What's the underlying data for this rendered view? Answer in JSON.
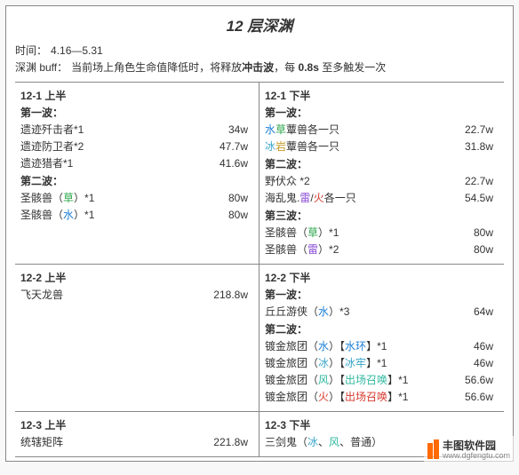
{
  "colors": {
    "text": "#333333",
    "border": "#888888",
    "bg": "#ffffff",
    "hydro": "#1e7fd6",
    "dendro": "#2fa84f",
    "cryo": "#3aa6c9",
    "geo": "#c49a2a",
    "electro": "#8a4fd6",
    "pyro": "#d63a2f",
    "anemo": "#2fb9a0",
    "accent_orange": "#ff6a00"
  },
  "title": "12 层深渊",
  "meta": {
    "time_label": "时间：",
    "time_value": "4.16—5.31",
    "buff_label": "深渊 buff：",
    "buff_pre": "当前场上角色生命值降低时，将释放",
    "buff_key": "冲击波",
    "buff_mid": "，每 ",
    "buff_interval": "0.8s",
    "buff_post": " 至多触发一次"
  },
  "cells": [
    {
      "header": "12-1 上半",
      "waves": [
        {
          "label": "第一波：",
          "rows": [
            {
              "frags": [
                {
                  "t": "遗迹歼击者*1"
                }
              ],
              "val": "34w"
            },
            {
              "frags": [
                {
                  "t": "遗迹防卫者*2"
                }
              ],
              "val": "47.7w"
            },
            {
              "frags": [
                {
                  "t": "遗迹猎者*1"
                }
              ],
              "val": "41.6w"
            }
          ]
        },
        {
          "label": "第二波：",
          "rows": [
            {
              "frags": [
                {
                  "t": "圣骸兽（"
                },
                {
                  "t": "草",
                  "c": "dendro"
                },
                {
                  "t": "）*1"
                }
              ],
              "val": "80w"
            },
            {
              "frags": [
                {
                  "t": "圣骸兽（"
                },
                {
                  "t": "水",
                  "c": "hydro"
                },
                {
                  "t": "）*1"
                }
              ],
              "val": "80w"
            }
          ]
        }
      ]
    },
    {
      "header": "12-1 下半",
      "waves": [
        {
          "label": "第一波：",
          "rows": [
            {
              "frags": [
                {
                  "t": "水",
                  "c": "hydro"
                },
                {
                  "t": "草",
                  "c": "dendro"
                },
                {
                  "t": "蕈兽各一只"
                }
              ],
              "val": "22.7w"
            },
            {
              "frags": [
                {
                  "t": "冰",
                  "c": "cryo"
                },
                {
                  "t": "岩",
                  "c": "geo"
                },
                {
                  "t": "蕈兽各一只"
                }
              ],
              "val": "31.8w"
            }
          ]
        },
        {
          "label": "第二波：",
          "rows": [
            {
              "frags": [
                {
                  "t": "野伏众 *2"
                }
              ],
              "val": "22.7w"
            },
            {
              "frags": [
                {
                  "t": "海乱鬼."
                },
                {
                  "t": "雷",
                  "c": "electro"
                },
                {
                  "t": "/"
                },
                {
                  "t": "火",
                  "c": "pyro"
                },
                {
                  "t": "各一只"
                }
              ],
              "val": "54.5w"
            }
          ]
        },
        {
          "label": "第三波：",
          "rows": [
            {
              "frags": [
                {
                  "t": "圣骸兽（"
                },
                {
                  "t": "草",
                  "c": "dendro"
                },
                {
                  "t": "）*1"
                }
              ],
              "val": "80w"
            },
            {
              "frags": [
                {
                  "t": "圣骸兽（"
                },
                {
                  "t": "雷",
                  "c": "electro"
                },
                {
                  "t": "）*2"
                }
              ],
              "val": "80w"
            }
          ]
        }
      ]
    },
    {
      "header": "12-2 上半",
      "waves": [
        {
          "label": "",
          "rows": [
            {
              "frags": [
                {
                  "t": "飞天龙兽"
                }
              ],
              "val": "218.8w"
            }
          ]
        }
      ]
    },
    {
      "header": "12-2 下半",
      "waves": [
        {
          "label": "第一波：",
          "rows": [
            {
              "frags": [
                {
                  "t": "丘丘游侠（"
                },
                {
                  "t": "水",
                  "c": "hydro"
                },
                {
                  "t": "）*3"
                }
              ],
              "val": "64w"
            }
          ]
        },
        {
          "label": "第二波：",
          "rows": [
            {
              "frags": [
                {
                  "t": "镀金旅团（"
                },
                {
                  "t": "水",
                  "c": "hydro"
                },
                {
                  "t": "）【"
                },
                {
                  "t": "水环",
                  "c": "hydro"
                },
                {
                  "t": "】*1"
                }
              ],
              "val": "46w"
            },
            {
              "frags": [
                {
                  "t": "镀金旅团（"
                },
                {
                  "t": "冰",
                  "c": "cryo"
                },
                {
                  "t": "）【"
                },
                {
                  "t": "冰牢",
                  "c": "cryo"
                },
                {
                  "t": "】*1"
                }
              ],
              "val": "46w"
            },
            {
              "frags": [
                {
                  "t": "镀金旅团（"
                },
                {
                  "t": "风",
                  "c": "anemo"
                },
                {
                  "t": "）【"
                },
                {
                  "t": "出场召唤",
                  "c": "anemo"
                },
                {
                  "t": "】*1"
                }
              ],
              "val": "56.6w"
            },
            {
              "frags": [
                {
                  "t": "镀金旅团（"
                },
                {
                  "t": "火",
                  "c": "pyro"
                },
                {
                  "t": "）【"
                },
                {
                  "t": "出场召唤",
                  "c": "pyro"
                },
                {
                  "t": "】*1"
                }
              ],
              "val": "56.6w"
            }
          ]
        }
      ]
    },
    {
      "header": "12-3 上半",
      "waves": [
        {
          "label": "",
          "rows": [
            {
              "frags": [
                {
                  "t": "统辖矩阵"
                }
              ],
              "val": "221.8w"
            }
          ]
        }
      ]
    },
    {
      "header": "12-3 下半",
      "waves": [
        {
          "label": "",
          "rows": [
            {
              "frags": [
                {
                  "t": "三剑鬼（"
                },
                {
                  "t": "冰",
                  "c": "cryo"
                },
                {
                  "t": "、"
                },
                {
                  "t": "风",
                  "c": "anemo"
                },
                {
                  "t": "、普通）"
                }
              ],
              "val": ""
            }
          ]
        }
      ]
    }
  ],
  "watermark": {
    "name": "丰图软件园",
    "url": "www.dgfengtu.com"
  }
}
